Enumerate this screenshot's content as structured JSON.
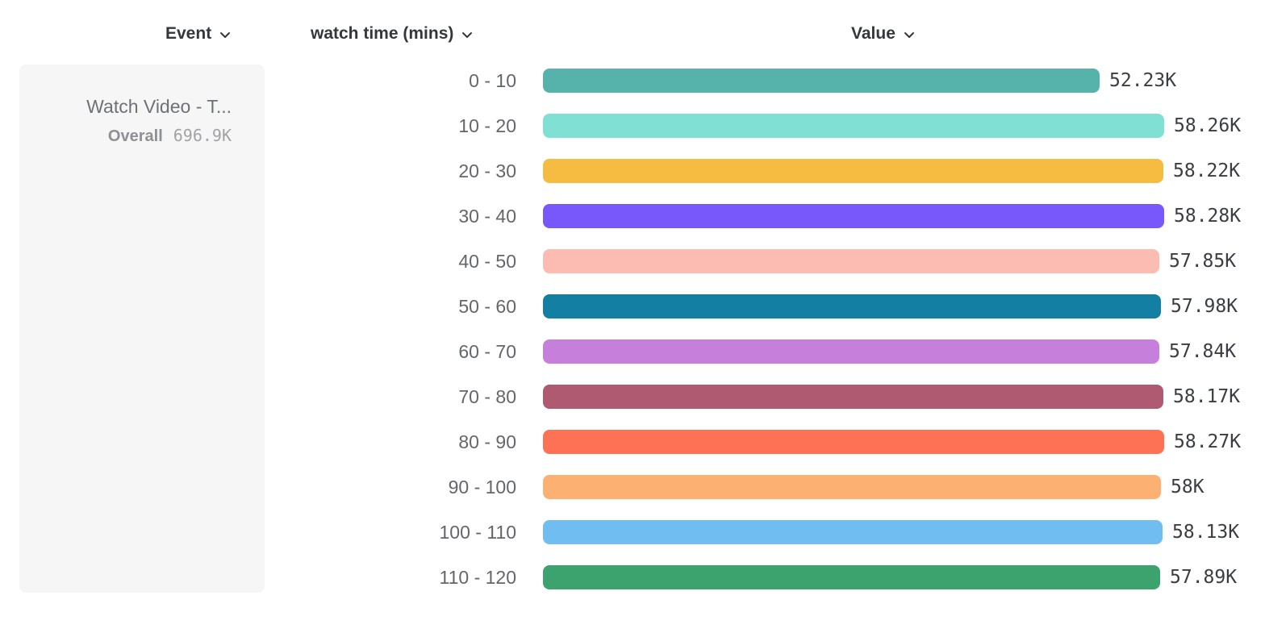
{
  "header": {
    "columns": [
      {
        "id": "event",
        "label": "Event",
        "icon": "chevron-down-icon"
      },
      {
        "id": "breakdown",
        "label": "watch time (mins)",
        "icon": "chevron-down-icon"
      },
      {
        "id": "value",
        "label": "Value",
        "icon": "chevron-down-icon"
      }
    ]
  },
  "event_card": {
    "title": "Watch Video - T...",
    "overall_label": "Overall",
    "overall_value": "696.9K"
  },
  "chart_data": {
    "type": "bar",
    "orientation": "horizontal",
    "title": "",
    "xlabel": "Value",
    "ylabel": "watch time (mins)",
    "legend": false,
    "grid": false,
    "value_axis_min": 0,
    "value_axis_max": 58280,
    "categories": [
      "0 - 10",
      "10 - 20",
      "20 - 30",
      "30 - 40",
      "40 - 50",
      "50 - 60",
      "60 - 70",
      "70 - 80",
      "80 - 90",
      "90 - 100",
      "100 - 110",
      "110 - 120"
    ],
    "values": [
      52230,
      58260,
      58220,
      58280,
      57850,
      57980,
      57840,
      58170,
      58270,
      58000,
      58130,
      57890
    ],
    "value_labels": [
      "52.23K",
      "58.26K",
      "58.22K",
      "58.28K",
      "57.85K",
      "57.98K",
      "57.84K",
      "58.17K",
      "58.27K",
      "58K",
      "58.13K",
      "57.89K"
    ],
    "bar_colors": [
      "#56b3ac",
      "#80e0d3",
      "#f6bc41",
      "#7857fb",
      "#fcbcb1",
      "#1380a3",
      "#c77fdc",
      "#b05a71",
      "#fd7254",
      "#fcb072",
      "#70bdf2",
      "#3ca36f"
    ]
  },
  "colors": {
    "header_text": "#34373c",
    "category_text": "#63666b",
    "value_text": "#3a3d41",
    "card_bg": "#f6f6f6"
  }
}
